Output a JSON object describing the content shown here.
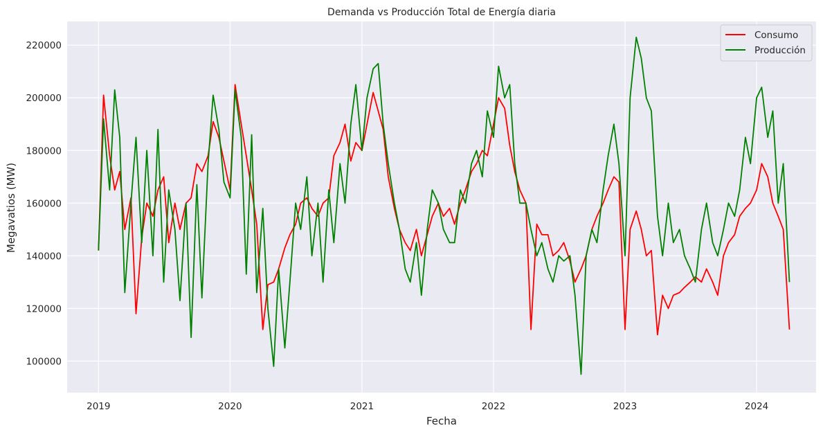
{
  "chart_data": {
    "type": "line",
    "title": "Demanda vs Producción Total de Energía diaria",
    "xlabel": "Fecha",
    "ylabel": "Megavatios (MW)",
    "x_ticks": [
      "2019",
      "2020",
      "2021",
      "2022",
      "2023",
      "2024"
    ],
    "y_ticks": [
      100000,
      120000,
      140000,
      160000,
      180000,
      200000,
      220000
    ],
    "x_range": [
      "2018-10-06",
      "2024-06-14"
    ],
    "ylim": [
      88000,
      229000
    ],
    "grid": true,
    "background": "#eaeaf2",
    "legend_position": "top-right",
    "series": [
      {
        "name": "Consumo",
        "color": "#ff0000",
        "x": [
          "2019-01-01",
          "2019-01-15",
          "2019-02-01",
          "2019-02-15",
          "2019-03-01",
          "2019-03-15",
          "2019-04-01",
          "2019-04-15",
          "2019-05-01",
          "2019-05-15",
          "2019-06-01",
          "2019-06-15",
          "2019-07-01",
          "2019-07-15",
          "2019-08-01",
          "2019-08-15",
          "2019-09-01",
          "2019-09-15",
          "2019-10-01",
          "2019-10-15",
          "2019-11-01",
          "2019-11-15",
          "2019-12-01",
          "2019-12-15",
          "2020-01-01",
          "2020-01-15",
          "2020-02-01",
          "2020-02-15",
          "2020-03-01",
          "2020-03-15",
          "2020-04-01",
          "2020-04-15",
          "2020-05-01",
          "2020-05-15",
          "2020-06-01",
          "2020-06-15",
          "2020-07-01",
          "2020-07-15",
          "2020-08-01",
          "2020-08-15",
          "2020-09-01",
          "2020-09-15",
          "2020-10-01",
          "2020-10-15",
          "2020-11-01",
          "2020-11-15",
          "2020-12-01",
          "2020-12-15",
          "2021-01-01",
          "2021-01-15",
          "2021-02-01",
          "2021-02-15",
          "2021-03-01",
          "2021-03-15",
          "2021-04-01",
          "2021-04-15",
          "2021-05-01",
          "2021-05-15",
          "2021-06-01",
          "2021-06-15",
          "2021-07-01",
          "2021-07-15",
          "2021-08-01",
          "2021-08-15",
          "2021-09-01",
          "2021-09-15",
          "2021-10-01",
          "2021-10-15",
          "2021-11-01",
          "2021-11-15",
          "2021-12-01",
          "2021-12-15",
          "2022-01-01",
          "2022-01-15",
          "2022-02-01",
          "2022-02-15",
          "2022-03-01",
          "2022-03-15",
          "2022-04-01",
          "2022-04-15",
          "2022-05-01",
          "2022-05-15",
          "2022-06-01",
          "2022-06-15",
          "2022-07-01",
          "2022-07-15",
          "2022-08-01",
          "2022-08-15",
          "2022-09-01",
          "2022-09-15",
          "2022-10-01",
          "2022-10-15",
          "2022-11-01",
          "2022-11-15",
          "2022-12-01",
          "2022-12-15",
          "2023-01-01",
          "2023-01-15",
          "2023-02-01",
          "2023-02-15",
          "2023-03-01",
          "2023-03-15",
          "2023-04-01",
          "2023-04-15",
          "2023-05-01",
          "2023-05-15",
          "2023-06-01",
          "2023-06-15",
          "2023-07-01",
          "2023-07-15",
          "2023-08-01",
          "2023-08-15",
          "2023-09-01",
          "2023-09-15",
          "2023-10-01",
          "2023-10-15",
          "2023-11-01",
          "2023-11-15",
          "2023-12-01",
          "2023-12-15",
          "2024-01-01",
          "2024-01-15",
          "2024-02-01",
          "2024-02-15",
          "2024-03-01",
          "2024-03-15",
          "2024-04-01"
        ],
        "values": [
          142000,
          201000,
          178000,
          165000,
          172000,
          150000,
          162000,
          118000,
          147000,
          160000,
          155000,
          165000,
          170000,
          145000,
          160000,
          150000,
          160000,
          162000,
          175000,
          172000,
          178000,
          191000,
          185000,
          176000,
          165000,
          205000,
          190000,
          178000,
          165000,
          152000,
          112000,
          129000,
          130000,
          135000,
          143000,
          148000,
          152000,
          160000,
          162000,
          158000,
          155000,
          160000,
          162000,
          178000,
          183000,
          190000,
          176000,
          183000,
          180000,
          190000,
          202000,
          195000,
          188000,
          170000,
          158000,
          150000,
          145000,
          142000,
          150000,
          140000,
          148000,
          155000,
          160000,
          155000,
          158000,
          152000,
          160000,
          165000,
          172000,
          175000,
          180000,
          178000,
          190000,
          200000,
          196000,
          182000,
          172000,
          165000,
          160000,
          112000,
          152000,
          148000,
          148000,
          140000,
          142000,
          145000,
          138000,
          130000,
          135000,
          140000,
          150000,
          155000,
          160000,
          165000,
          170000,
          168000,
          112000,
          150000,
          157000,
          150000,
          140000,
          142000,
          110000,
          125000,
          120000,
          125000,
          126000,
          128000,
          130000,
          132000,
          130000,
          135000,
          130000,
          125000,
          140000,
          145000,
          148000,
          155000,
          158000,
          160000,
          165000,
          175000,
          170000,
          160000,
          155000,
          150000,
          112000
        ]
      },
      {
        "name": "Producción",
        "color": "#008000",
        "x": [
          "2019-01-01",
          "2019-01-15",
          "2019-02-01",
          "2019-02-15",
          "2019-03-01",
          "2019-03-15",
          "2019-04-01",
          "2019-04-15",
          "2019-05-01",
          "2019-05-15",
          "2019-06-01",
          "2019-06-15",
          "2019-07-01",
          "2019-07-15",
          "2019-08-01",
          "2019-08-15",
          "2019-09-01",
          "2019-09-15",
          "2019-10-01",
          "2019-10-15",
          "2019-11-01",
          "2019-11-15",
          "2019-12-01",
          "2019-12-15",
          "2020-01-01",
          "2020-01-15",
          "2020-02-01",
          "2020-02-15",
          "2020-03-01",
          "2020-03-15",
          "2020-04-01",
          "2020-04-15",
          "2020-05-01",
          "2020-05-15",
          "2020-06-01",
          "2020-06-15",
          "2020-07-01",
          "2020-07-15",
          "2020-08-01",
          "2020-08-15",
          "2020-09-01",
          "2020-09-15",
          "2020-10-01",
          "2020-10-15",
          "2020-11-01",
          "2020-11-15",
          "2020-12-01",
          "2020-12-15",
          "2021-01-01",
          "2021-01-15",
          "2021-02-01",
          "2021-02-15",
          "2021-03-01",
          "2021-03-15",
          "2021-04-01",
          "2021-04-15",
          "2021-05-01",
          "2021-05-15",
          "2021-06-01",
          "2021-06-15",
          "2021-07-01",
          "2021-07-15",
          "2021-08-01",
          "2021-08-15",
          "2021-09-01",
          "2021-09-15",
          "2021-10-01",
          "2021-10-15",
          "2021-11-01",
          "2021-11-15",
          "2021-12-01",
          "2021-12-15",
          "2022-01-01",
          "2022-01-15",
          "2022-02-01",
          "2022-02-15",
          "2022-03-01",
          "2022-03-15",
          "2022-04-01",
          "2022-04-15",
          "2022-05-01",
          "2022-05-15",
          "2022-06-01",
          "2022-06-15",
          "2022-07-01",
          "2022-07-15",
          "2022-08-01",
          "2022-08-15",
          "2022-09-01",
          "2022-09-15",
          "2022-10-01",
          "2022-10-15",
          "2022-11-01",
          "2022-11-15",
          "2022-12-01",
          "2022-12-15",
          "2023-01-01",
          "2023-01-15",
          "2023-02-01",
          "2023-02-15",
          "2023-03-01",
          "2023-03-15",
          "2023-04-01",
          "2023-04-15",
          "2023-05-01",
          "2023-05-15",
          "2023-06-01",
          "2023-06-15",
          "2023-07-01",
          "2023-07-15",
          "2023-08-01",
          "2023-08-15",
          "2023-09-01",
          "2023-09-15",
          "2023-10-01",
          "2023-10-15",
          "2023-11-01",
          "2023-11-15",
          "2023-12-01",
          "2023-12-15",
          "2024-01-01",
          "2024-01-15",
          "2024-02-01",
          "2024-02-15",
          "2024-03-01",
          "2024-03-15",
          "2024-04-01"
        ],
        "values": [
          142000,
          192000,
          165000,
          203000,
          185000,
          126000,
          160000,
          185000,
          145000,
          180000,
          140000,
          188000,
          130000,
          165000,
          150000,
          123000,
          160000,
          109000,
          167000,
          124000,
          175000,
          201000,
          188000,
          168000,
          162000,
          203000,
          185000,
          133000,
          186000,
          126000,
          158000,
          120000,
          98000,
          135000,
          105000,
          130000,
          160000,
          150000,
          170000,
          140000,
          160000,
          130000,
          165000,
          145000,
          175000,
          160000,
          190000,
          205000,
          180000,
          200000,
          211000,
          213000,
          190000,
          175000,
          160000,
          150000,
          135000,
          130000,
          145000,
          125000,
          150000,
          165000,
          160000,
          150000,
          145000,
          145000,
          165000,
          160000,
          175000,
          180000,
          170000,
          195000,
          185000,
          212000,
          200000,
          205000,
          175000,
          160000,
          160000,
          150000,
          140000,
          145000,
          135000,
          130000,
          140000,
          138000,
          140000,
          125000,
          95000,
          140000,
          150000,
          145000,
          165000,
          178000,
          190000,
          175000,
          140000,
          200000,
          223000,
          215000,
          200000,
          195000,
          155000,
          140000,
          160000,
          145000,
          150000,
          140000,
          135000,
          130000,
          150000,
          160000,
          145000,
          140000,
          150000,
          160000,
          155000,
          165000,
          185000,
          175000,
          200000,
          204000,
          185000,
          195000,
          160000,
          175000,
          130000
        ]
      }
    ]
  }
}
